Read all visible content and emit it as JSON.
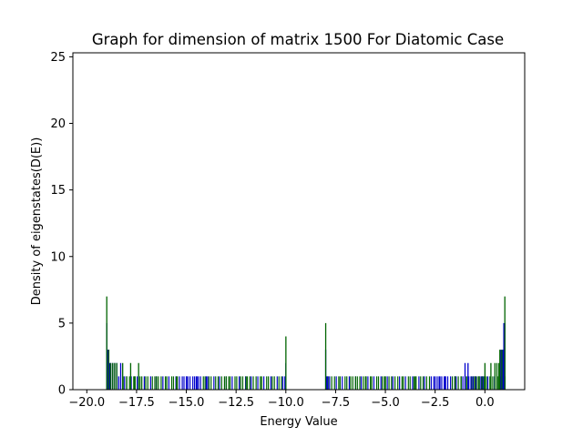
{
  "chart_data": {
    "type": "bar",
    "title": "Graph for dimension of matrix 1500 For Diatomic Case",
    "xlabel": "Energy Value",
    "ylabel": "Density of eigenstates(D(E))",
    "xlim": [
      -20.7,
      2.0
    ],
    "ylim": [
      0,
      25.3
    ],
    "xticks": [
      -20.0,
      -17.5,
      -15.0,
      -12.5,
      -10.0,
      -7.5,
      -5.0,
      -2.5,
      0.0
    ],
    "xtick_labels": [
      "−20.0",
      "−17.5",
      "−15.0",
      "−12.5",
      "−10.0",
      "−7.5",
      "−5.0",
      "−2.5",
      "0.0"
    ],
    "yticks": [
      0,
      5,
      10,
      15,
      20,
      25
    ],
    "ytick_labels": [
      "0",
      "5",
      "10",
      "15",
      "20",
      "25"
    ],
    "grid": false,
    "legend": "none",
    "series": [
      {
        "color": "#0000cc",
        "x": [
          -19.0,
          -18.95,
          -18.9,
          -18.85,
          -18.8,
          -18.7,
          -18.6,
          -18.5,
          -18.4,
          -18.3,
          -15.0,
          -14.5,
          -14.0,
          -10.05,
          -10.0,
          -8.0,
          -7.95,
          -7.9,
          -2.3,
          -2.0,
          -1.5,
          -1.0,
          -0.85,
          -0.7,
          -0.6,
          -0.5,
          -0.3,
          -0.2,
          -0.1,
          0.8,
          0.9,
          0.95,
          1.0
        ],
        "values": [
          5,
          3,
          3,
          2,
          2,
          2,
          2,
          2,
          1,
          2,
          1,
          1,
          1,
          1,
          2,
          3,
          1,
          1,
          1,
          1,
          1,
          2,
          2,
          1,
          1,
          1,
          1,
          1,
          1,
          3,
          3,
          5,
          5
        ]
      },
      {
        "color": "#006400",
        "x": [
          -19.0,
          -18.9,
          -18.8,
          -18.7,
          -18.6,
          -18.5,
          -18.2,
          -18.0,
          -17.8,
          -17.6,
          -17.4,
          -16.5,
          -15.5,
          -13.0,
          -12.0,
          -10.0,
          -8.0,
          -6.5,
          -6.0,
          -5.0,
          -3.5,
          -1.5,
          -1.2,
          -0.5,
          -0.3,
          -0.15,
          0.0,
          0.3,
          0.5,
          0.6,
          0.7,
          0.75,
          0.85,
          1.0
        ],
        "values": [
          7,
          3,
          2,
          2,
          2,
          2,
          2,
          1,
          2,
          1,
          2,
          1,
          1,
          1,
          1,
          4,
          5,
          1,
          1,
          1,
          1,
          1,
          1,
          1,
          1,
          1,
          2,
          2,
          2,
          2,
          2,
          3,
          3,
          7
        ]
      }
    ]
  }
}
